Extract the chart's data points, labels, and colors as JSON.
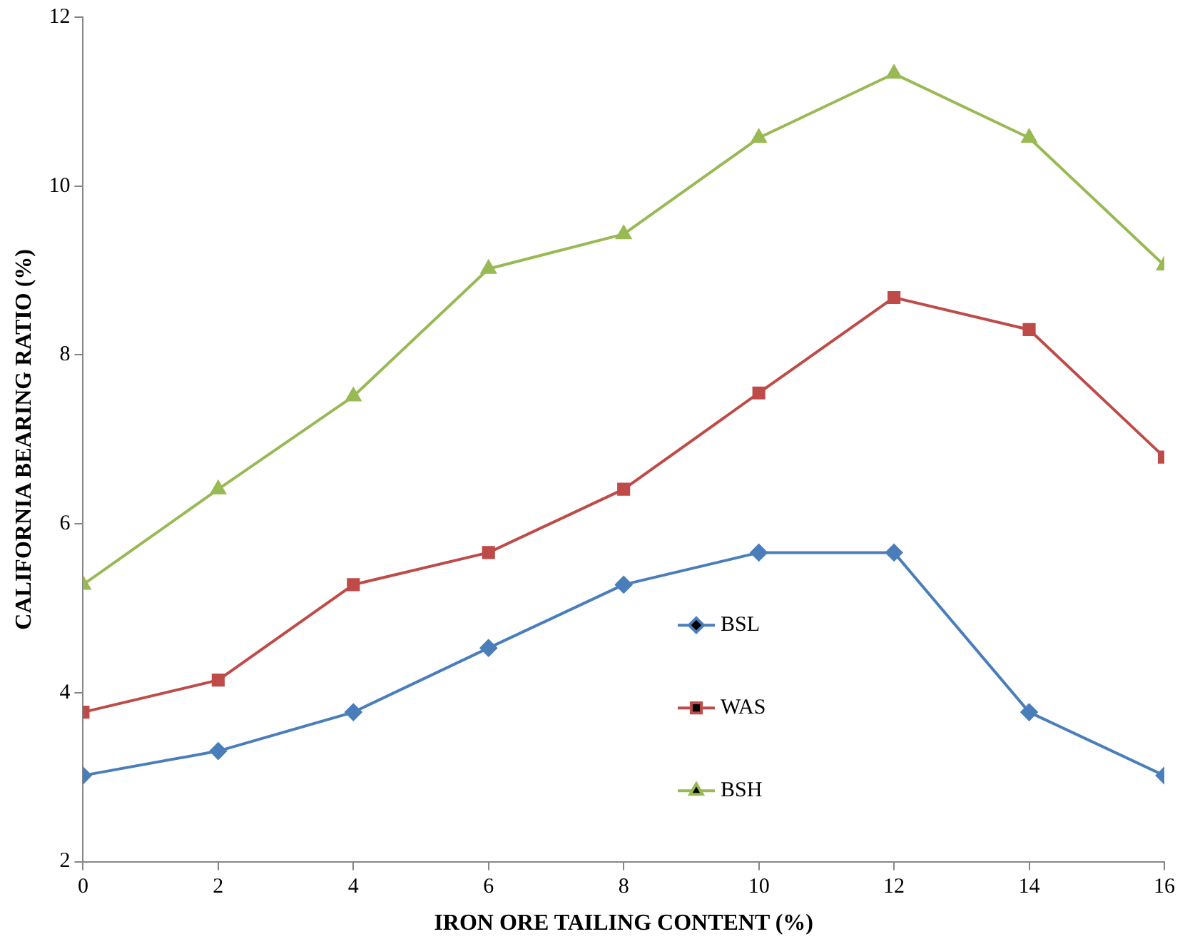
{
  "chart_data": {
    "type": "line",
    "xlabel": "IRON ORE TAILING CONTENT (%)",
    "ylabel": "CALIFORNIA BEARING RATIO (%)",
    "x": [
      0,
      2,
      4,
      6,
      8,
      10,
      12,
      14,
      16
    ],
    "series": [
      {
        "name": "BSL",
        "color": "#4a7ebb",
        "marker": "diamond",
        "values": [
          3.02,
          3.31,
          3.77,
          4.53,
          5.28,
          5.66,
          5.66,
          3.77,
          3.02
        ]
      },
      {
        "name": "WAS",
        "color": "#be4b48",
        "marker": "square",
        "values": [
          3.77,
          4.15,
          5.28,
          5.66,
          6.41,
          7.55,
          8.68,
          8.3,
          6.79
        ]
      },
      {
        "name": "BSH",
        "color": "#98b954",
        "marker": "triangle",
        "values": [
          5.28,
          6.41,
          7.51,
          9.02,
          9.43,
          10.57,
          11.33,
          10.57,
          9.06
        ]
      }
    ],
    "xlim": [
      0,
      16
    ],
    "xticks": [
      0,
      2,
      4,
      6,
      8,
      10,
      12,
      14,
      16
    ],
    "ylim": [
      2,
      12
    ],
    "yticks": [
      2,
      4,
      6,
      8,
      10,
      12
    ],
    "grid": false,
    "legend": "bottom center",
    "line_style": "solid"
  }
}
